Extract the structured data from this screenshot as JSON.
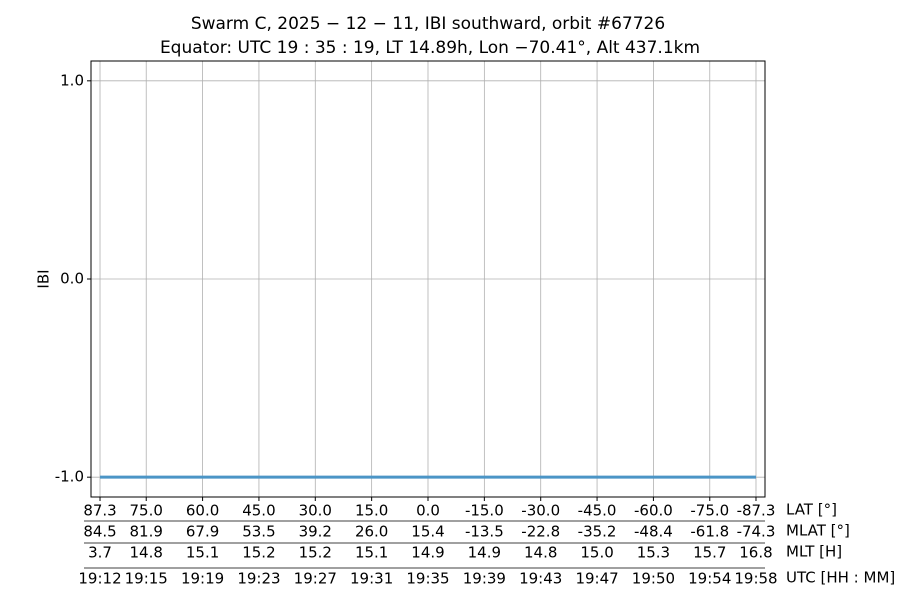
{
  "chart_data": {
    "type": "line",
    "title": "Swarm C, 2025 − 12 − 11, IBI southward, orbit #67726",
    "subtitle": "Equator: UTC 19 : 35 : 19, LT 14.89h, Lon −70.41°, Alt 437.1km",
    "y_label": "IBI",
    "x_label": "LAT [°]",
    "x": [
      87.3,
      -87.3
    ],
    "series": [
      {
        "name": "IBI",
        "color": "#4b95c6",
        "values": [
          -1,
          -1
        ]
      }
    ],
    "xlim": [
      89.7,
      -89.7
    ],
    "xticks": [
      87.3,
      {
        "value": 75,
        "label": "75.0"
      },
      {
        "value": 60,
        "label": "60.0"
      },
      {
        "value": 45,
        "label": "45.0"
      },
      {
        "value": 30,
        "label": "30.0"
      },
      {
        "value": 15,
        "label": "15.0"
      },
      {
        "value": 0,
        "label": "0.0"
      },
      {
        "value": -15,
        "label": "-15.0"
      },
      {
        "value": -30,
        "label": "-30.0"
      },
      {
        "value": -45,
        "label": "-45.0"
      },
      {
        "value": -60,
        "label": "-60.0"
      },
      {
        "value": -75,
        "label": "-75.0"
      },
      -87.3
    ],
    "ylim": [
      -1.1,
      1.1
    ],
    "yticks": [
      {
        "value": -1,
        "label": "-1.0"
      },
      {
        "value": 0,
        "label": "0.0"
      },
      {
        "value": 1,
        "label": "1.0"
      }
    ],
    "grid": true,
    "extra_tick_rows": [
      {
        "name": "MLAT [°]",
        "labels": [
          "84.5",
          "81.9",
          "67.9",
          "53.5",
          "39.2",
          "26.0",
          "15.4",
          "-13.5",
          "-22.8",
          "-35.2",
          "-48.4",
          "-61.8",
          "-74.3"
        ]
      },
      {
        "name": "MLT [H]",
        "labels": [
          "3.7",
          "14.8",
          "15.1",
          "15.2",
          "15.2",
          "15.1",
          "14.9",
          "14.9",
          "14.8",
          "15.0",
          "15.3",
          "15.7",
          "16.8"
        ]
      },
      {
        "name": "UTC [HH : MM]",
        "labels": [
          "19:12",
          "19:15",
          "19:19",
          "19:23",
          "19:27",
          "19:31",
          "19:35",
          "19:39",
          "19:43",
          "19:47",
          "19:50",
          "19:54",
          "19:58"
        ]
      }
    ]
  }
}
